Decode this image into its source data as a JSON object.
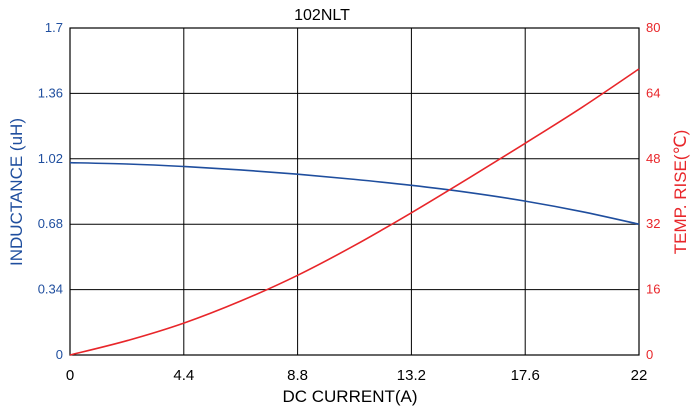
{
  "chart_data": {
    "type": "line",
    "title": "102NLT",
    "xlabel": "DC CURRENT(A)",
    "xlim": [
      0,
      22
    ],
    "x_ticks": [
      "0",
      "4.4",
      "8.8",
      "13.2",
      "17.6",
      "22"
    ],
    "x_tick_values": [
      0,
      4.4,
      8.8,
      13.2,
      17.6,
      22
    ],
    "y_left": {
      "label": "INDUCTANCE (uH)",
      "lim": [
        0,
        1.7
      ],
      "ticks": [
        "0",
        "0.34",
        "0.68",
        "1.02",
        "1.36",
        "1.7"
      ],
      "tick_values": [
        0,
        0.34,
        0.68,
        1.02,
        1.36,
        1.7
      ],
      "color": "#1f4e9e"
    },
    "y_right": {
      "label": "TEMP. RISE(℃)",
      "lim": [
        0,
        80
      ],
      "ticks": [
        "0",
        "16",
        "32",
        "48",
        "64",
        "80"
      ],
      "tick_values": [
        0,
        16,
        32,
        48,
        64,
        80
      ],
      "color": "#e8262a"
    },
    "grid": true,
    "series": [
      {
        "axis": "left",
        "color": "#1f4e9e",
        "x": [
          0,
          2.2,
          4.4,
          6.6,
          8.8,
          11,
          13.2,
          15.4,
          17.6,
          19.8,
          22
        ],
        "values": [
          1.0,
          0.993,
          0.98,
          0.962,
          0.94,
          0.913,
          0.882,
          0.845,
          0.8,
          0.745,
          0.68
        ]
      },
      {
        "axis": "right",
        "color": "#e8262a",
        "x": [
          0,
          2.2,
          4.4,
          6.6,
          8.8,
          11,
          13.2,
          15.4,
          17.6,
          19.8,
          22
        ],
        "values": [
          0,
          3.5,
          7.8,
          13.2,
          19.5,
          26.8,
          34.8,
          43.2,
          51.8,
          60.6,
          70
        ]
      }
    ]
  }
}
